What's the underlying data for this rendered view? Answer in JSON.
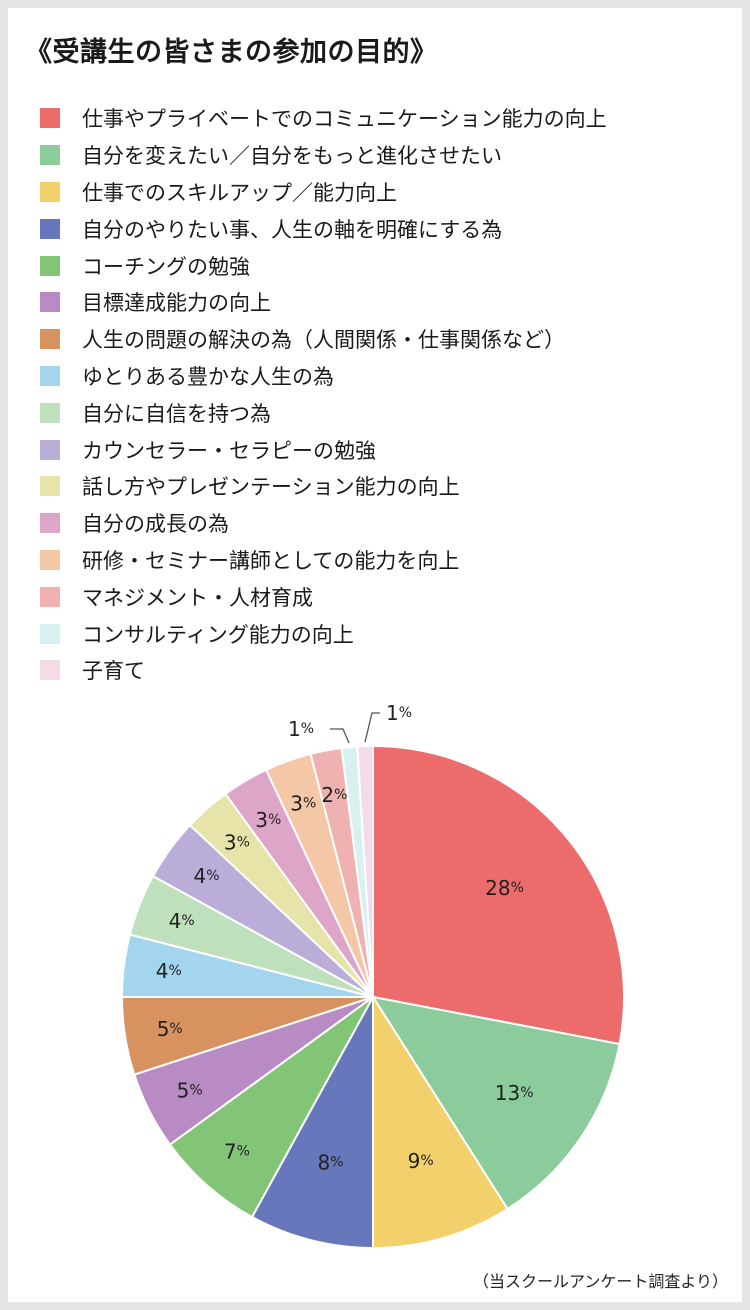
{
  "title": "《受講生の皆さまの参加の目的》",
  "source_note": "（当スクールアンケート調査より）",
  "chart_data": {
    "type": "pie",
    "title": "《受講生の皆さまの参加の目的》",
    "categories": [
      "仕事やプライベートでのコミュニケーション能力の向上",
      "自分を変えたい／自分をもっと進化させたい",
      "仕事でのスキルアップ／能力向上",
      "自分のやりたい事、人生の軸を明確にする為",
      "コーチングの勉強",
      "目標達成能力の向上",
      "人生の問題の解決の為（人間関係・仕事関係など）",
      "ゆとりある豊かな人生の為",
      "自分に自信を持つ為",
      "カウンセラー・セラピーの勉強",
      "話し方やプレゼンテーション能力の向上",
      "自分の成長の為",
      "研修・セミナー講師としての能力を向上",
      "マネジメント・人材育成",
      "コンサルティング能力の向上",
      "子育て"
    ],
    "values": [
      28,
      13,
      9,
      8,
      7,
      5,
      5,
      4,
      4,
      4,
      3,
      3,
      3,
      2,
      1,
      1
    ],
    "value_suffix": "%",
    "colors": [
      "#ec6b6b",
      "#8ccb9c",
      "#f2d06b",
      "#6677bb",
      "#83c576",
      "#b98bc5",
      "#d8925f",
      "#a3d6ee",
      "#bfe0bc",
      "#baadd8",
      "#e6e4a8",
      "#dda6c8",
      "#f4c8a7",
      "#f0b1b1",
      "#d9f0f2",
      "#f3dbe8"
    ],
    "legend_position": "top-left"
  }
}
